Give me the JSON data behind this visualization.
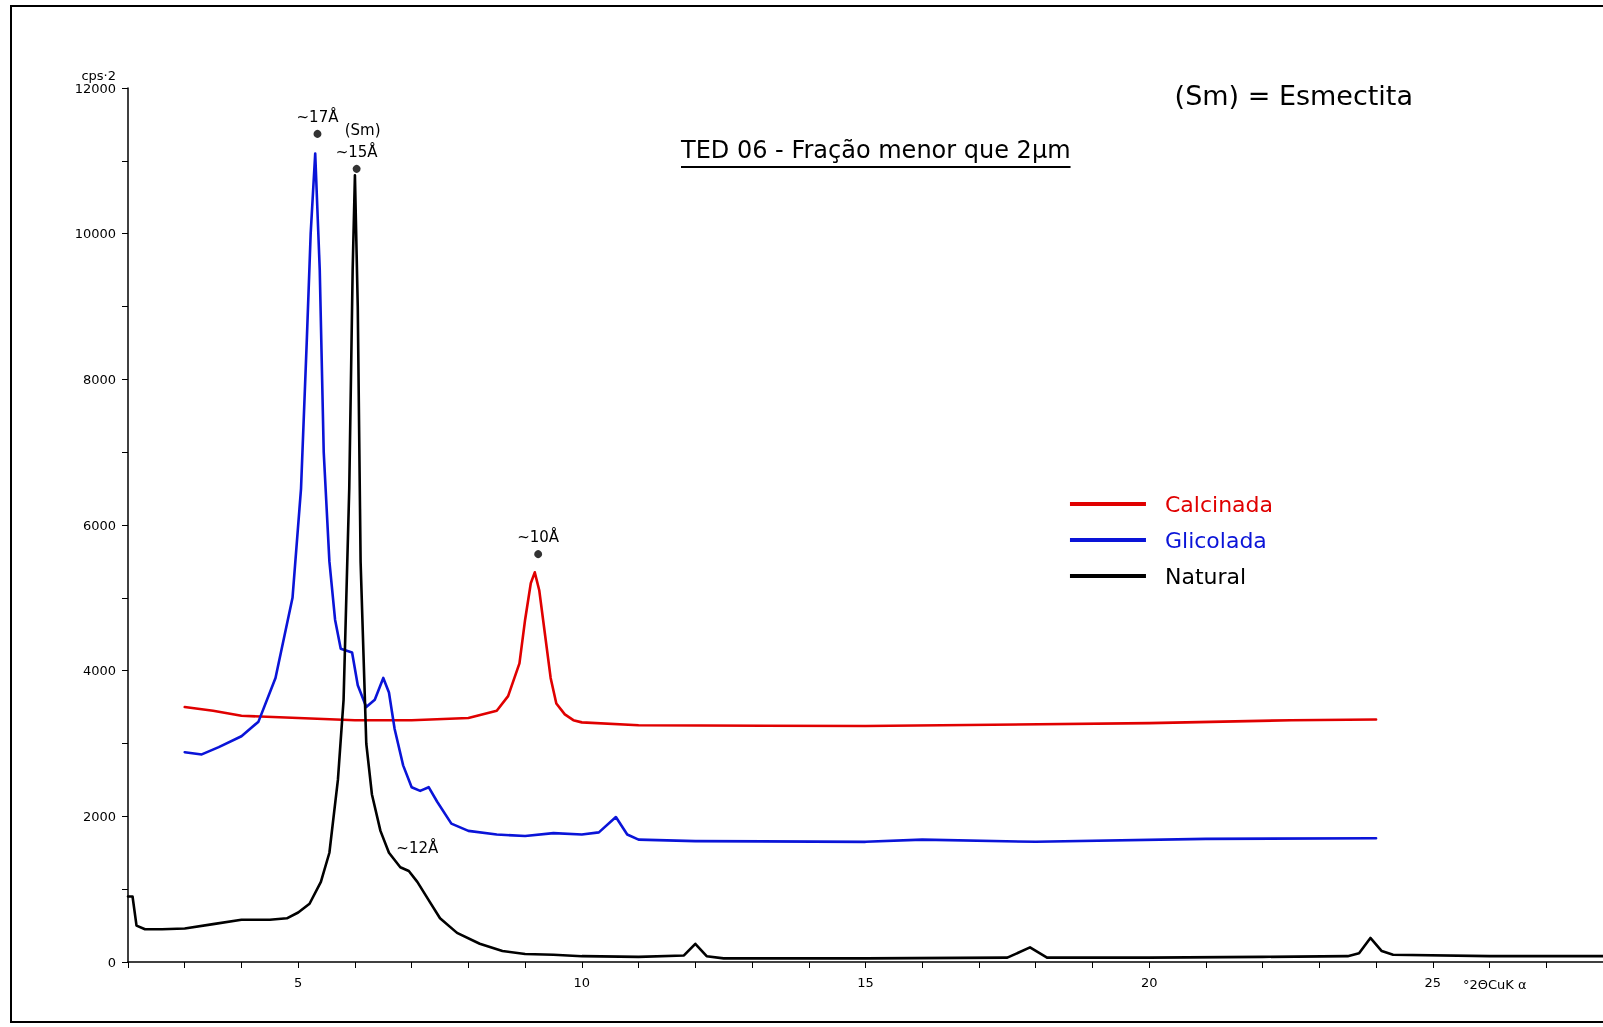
{
  "chart_data": {
    "type": "line",
    "title": "TED 06 - Fração menor que 2μm",
    "xlabel": "°2ΘCuK α",
    "ylabel": "cps·2",
    "annotations": [
      "(Sm) = Esmectita",
      {
        "text": "~17Å",
        "x": 5.34,
        "y": 11370
      },
      {
        "text": "~15Å",
        "x": 6.03,
        "y": 10890
      },
      {
        "text": "(Sm)",
        "x": 6.03,
        "y": 10890
      },
      {
        "text": "~10Å",
        "x": 9.23,
        "y": 5600
      },
      {
        "text": "~12Å",
        "x": 7.1,
        "y": 1100
      }
    ],
    "series": [
      {
        "name": "Calcinada",
        "color": "#e00000",
        "x": [
          3,
          3.5,
          4,
          5,
          6,
          7,
          8,
          8.5,
          8.7,
          8.9,
          9.0,
          9.1,
          9.17,
          9.25,
          9.35,
          9.45,
          9.55,
          9.7,
          9.85,
          10,
          11,
          15,
          20,
          22.5,
          24
        ],
        "values": [
          3500,
          3450,
          3380,
          3350,
          3320,
          3320,
          3350,
          3450,
          3650,
          4100,
          4700,
          5200,
          5350,
          5100,
          4500,
          3900,
          3550,
          3400,
          3320,
          3290,
          3250,
          3240,
          3280,
          3320,
          3330
        ]
      },
      {
        "name": "Glicolada",
        "color": "#0a14d8",
        "x": [
          3,
          3.3,
          3.6,
          4,
          4.3,
          4.6,
          4.9,
          5.05,
          5.15,
          5.22,
          5.3,
          5.38,
          5.45,
          5.55,
          5.65,
          5.75,
          5.95,
          6.05,
          6.2,
          6.35,
          6.5,
          6.6,
          6.7,
          6.85,
          7.0,
          7.15,
          7.3,
          7.45,
          7.7,
          8,
          8.5,
          9,
          9.5,
          10,
          10.3,
          10.6,
          10.8,
          11,
          12,
          15,
          16,
          18,
          21,
          24
        ],
        "values": [
          2880,
          2850,
          2950,
          3100,
          3300,
          3900,
          5000,
          6500,
          8500,
          10000,
          11100,
          9500,
          7000,
          5500,
          4700,
          4300,
          4250,
          3800,
          3500,
          3600,
          3900,
          3700,
          3200,
          2700,
          2400,
          2350,
          2400,
          2200,
          1900,
          1800,
          1750,
          1730,
          1770,
          1750,
          1780,
          1990,
          1750,
          1680,
          1660,
          1650,
          1680,
          1650,
          1690,
          1700
        ]
      },
      {
        "name": "Natural",
        "color": "#000000",
        "x": [
          2,
          2.08,
          2.15,
          2.3,
          2.6,
          3,
          3.5,
          4,
          4.5,
          4.8,
          5,
          5.2,
          5.4,
          5.55,
          5.7,
          5.8,
          5.9,
          5.96,
          6.0,
          6.05,
          6.1,
          6.2,
          6.3,
          6.45,
          6.6,
          6.8,
          6.95,
          7.1,
          7.3,
          7.5,
          7.8,
          8.2,
          8.6,
          9,
          9.5,
          10,
          11,
          11.8,
          12.0,
          12.2,
          12.5,
          15,
          17.5,
          17.9,
          18.2,
          20,
          22,
          23.5,
          23.7,
          23.9,
          24.1,
          24.3,
          26,
          28
        ],
        "values": [
          900,
          900,
          500,
          450,
          450,
          460,
          520,
          580,
          580,
          600,
          680,
          800,
          1100,
          1500,
          2500,
          3600,
          6500,
          9500,
          10800,
          9000,
          5500,
          3000,
          2300,
          1800,
          1500,
          1300,
          1250,
          1100,
          850,
          600,
          400,
          250,
          150,
          110,
          100,
          80,
          70,
          90,
          250,
          80,
          50,
          50,
          60,
          200,
          60,
          60,
          70,
          80,
          120,
          330,
          150,
          100,
          80,
          80
        ]
      },
      {
        "type": "scatter",
        "marker": "circle",
        "color": "#000000",
        "x": [
          5.34,
          6.03,
          9.23
        ],
        "values": [
          11370,
          10890,
          5600
        ]
      }
    ],
    "xlim": [
      2,
      28
    ],
    "xticks": [
      {
        "value": 2,
        "label": null
      },
      {
        "value": 3,
        "label": null
      },
      {
        "value": 4,
        "label": null
      },
      5,
      {
        "value": 6,
        "label": null
      },
      {
        "value": 7,
        "label": null
      },
      {
        "value": 8,
        "label": null
      },
      {
        "value": 9,
        "label": null
      },
      10,
      {
        "value": 11,
        "label": null
      },
      {
        "value": 12,
        "label": null
      },
      {
        "value": 13,
        "label": null
      },
      {
        "value": 14,
        "label": null
      },
      15,
      {
        "value": 16,
        "label": null
      },
      {
        "value": 17,
        "label": null
      },
      {
        "value": 18,
        "label": null
      },
      {
        "value": 19,
        "label": null
      },
      20,
      {
        "value": 21,
        "label": null
      },
      {
        "value": 22,
        "label": null
      },
      {
        "value": 23,
        "label": null
      },
      {
        "value": 24,
        "label": null
      },
      25,
      {
        "value": 26,
        "label": null
      },
      {
        "value": 27,
        "label": null
      },
      {
        "value": 28,
        "label": null
      }
    ],
    "ylim": [
      0,
      12000
    ],
    "yticks": [
      0,
      {
        "value": 1000,
        "label": null
      },
      2000,
      {
        "value": 3000,
        "label": null
      },
      4000,
      {
        "value": 5000,
        "label": null
      },
      6000,
      {
        "value": 7000,
        "label": null
      },
      8000,
      {
        "value": 9000,
        "label": null
      },
      10000,
      {
        "value": 11000,
        "label": null
      },
      12000
    ],
    "grid": false,
    "legend": "right",
    "marker": "none",
    "line_style": "solid"
  }
}
